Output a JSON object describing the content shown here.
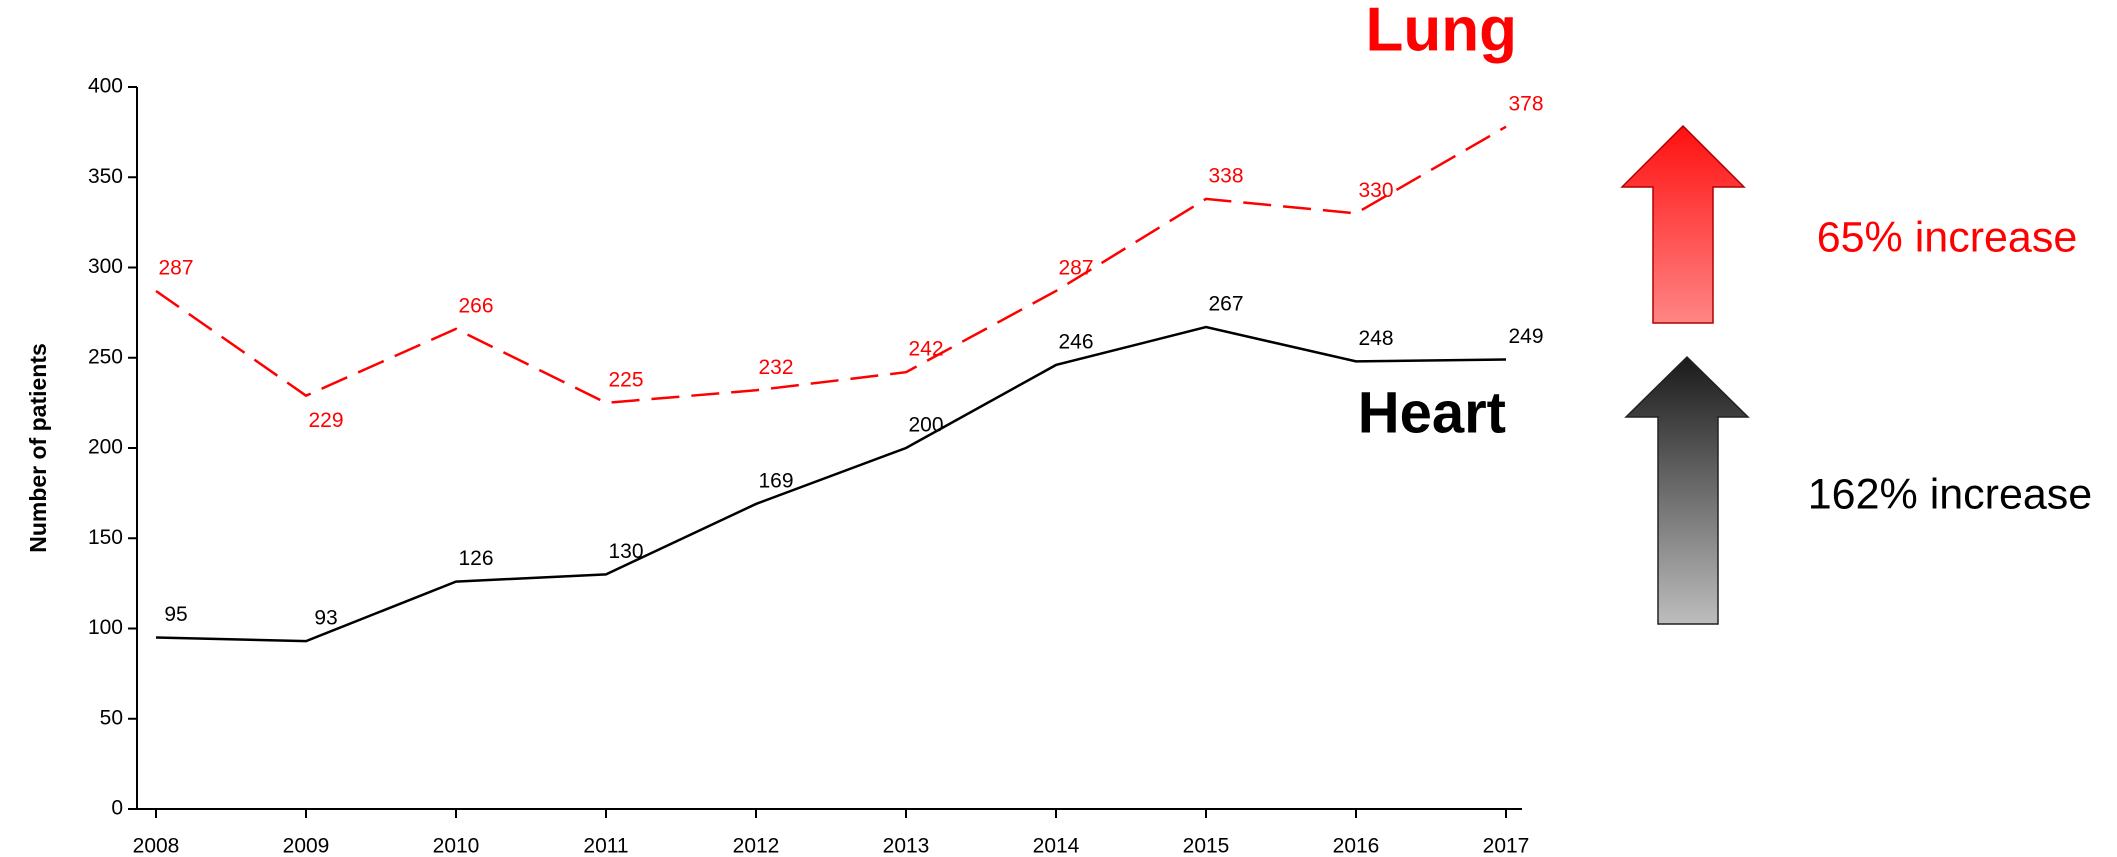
{
  "chart_data": {
    "type": "line",
    "y_label": "Number of patients",
    "categories": [
      "2008",
      "2009",
      "2010",
      "2011",
      "2012",
      "2013",
      "2014",
      "2015",
      "2016",
      "2017"
    ],
    "series": [
      {
        "name": "Lung",
        "color": "#ff0000",
        "dashed": true,
        "values": [
          287,
          229,
          266,
          225,
          232,
          242,
          287,
          338,
          330,
          378
        ]
      },
      {
        "name": "Heart",
        "color": "#000000",
        "dashed": false,
        "values": [
          95,
          93,
          126,
          130,
          169,
          200,
          246,
          267,
          248,
          249
        ]
      }
    ],
    "ylim": [
      0,
      400
    ],
    "yticks": [
      0,
      50,
      100,
      150,
      200,
      250,
      300,
      350,
      400
    ],
    "annotations": [
      {
        "text": "65% increase",
        "color": "#ff0000"
      },
      {
        "text": "162% increase",
        "color": "#000000"
      }
    ]
  }
}
